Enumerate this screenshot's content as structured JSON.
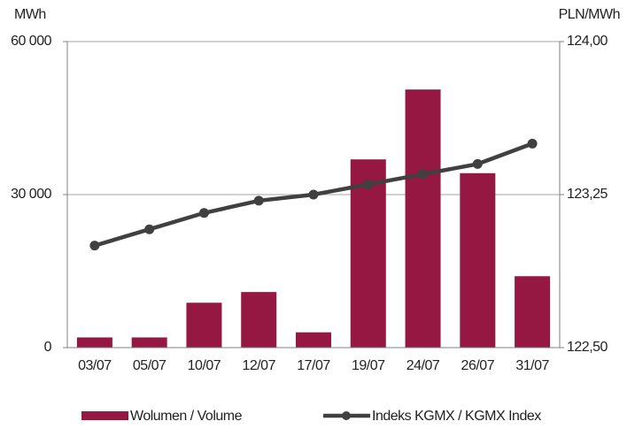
{
  "chart_data": {
    "type": "bar",
    "y_label": "MWh",
    "y2_label": "PLN/MWh",
    "categories": [
      "03/07",
      "05/07",
      "10/07",
      "12/07",
      "17/07",
      "19/07",
      "24/07",
      "26/07",
      "31/07"
    ],
    "series": [
      {
        "name": "Wolumen / Volume",
        "type": "bar",
        "axis": "y",
        "color": "#941842",
        "values": [
          2000,
          2000,
          8800,
          10900,
          3000,
          36900,
          50600,
          34200,
          14000
        ]
      },
      {
        "name": "Indeks KGMX / KGMX Index",
        "type": "line",
        "axis": "y2",
        "color": "#404040",
        "values": [
          123.0,
          123.08,
          123.16,
          123.22,
          123.25,
          123.3,
          123.35,
          123.4,
          123.5
        ]
      }
    ],
    "ylim": [
      0,
      60000
    ],
    "yticks": [
      0,
      {
        "value": 30000,
        "label": "30 000"
      },
      {
        "value": 60000,
        "label": "60 000"
      }
    ],
    "y2lim": [
      122.5,
      124.0
    ],
    "y2ticks": [
      {
        "value": 122.5,
        "label": "122,50"
      },
      {
        "value": 123.25,
        "label": "123,25"
      },
      {
        "value": 124.0,
        "label": "124,00"
      }
    ],
    "grid": true
  }
}
